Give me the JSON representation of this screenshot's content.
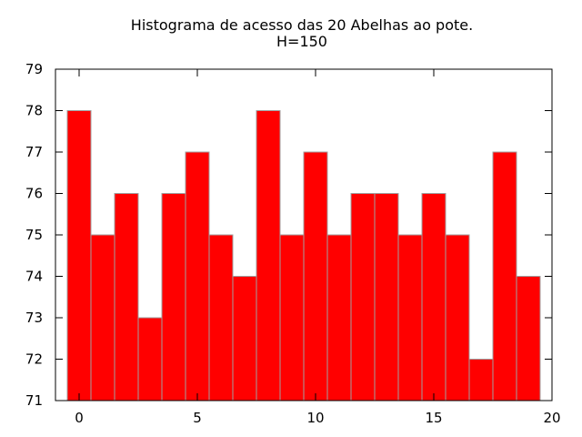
{
  "chart_data": {
    "type": "bar",
    "title": "Histograma de acesso das 20 Abelhas ao pote.",
    "subtitle": "H=150",
    "xlabel": "",
    "ylabel": "",
    "x": [
      0,
      1,
      2,
      3,
      4,
      5,
      6,
      7,
      8,
      9,
      10,
      11,
      12,
      13,
      14,
      15,
      16,
      17,
      18,
      19
    ],
    "values": [
      78,
      75,
      76,
      73,
      76,
      77,
      75,
      74,
      78,
      75,
      77,
      75,
      76,
      76,
      75,
      76,
      75,
      72,
      77,
      74
    ],
    "xlim": [
      -1,
      20
    ],
    "ylim": [
      71,
      79
    ],
    "x_ticks": [
      "0",
      "5",
      "10",
      "15",
      "20"
    ],
    "y_ticks": [
      "71",
      "72",
      "73",
      "74",
      "75",
      "76",
      "77",
      "78",
      "79"
    ],
    "bar_color": "#ff0000",
    "bar_edge_color": "#a0a0a0",
    "grid": false,
    "legend": "none"
  }
}
